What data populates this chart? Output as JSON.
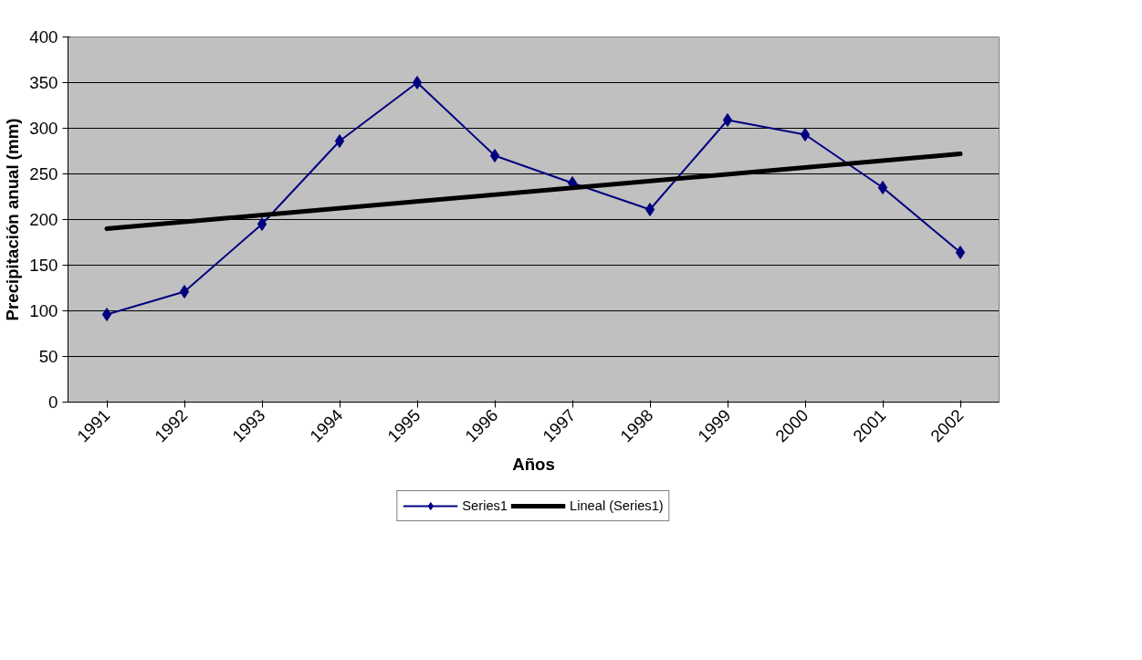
{
  "chart_data": {
    "type": "line",
    "xlabel": "Años",
    "ylabel": "Precipitación anual (mm)",
    "x": [
      1991,
      1992,
      1993,
      1994,
      1995,
      1996,
      1997,
      1998,
      1999,
      2000,
      2001,
      2002
    ],
    "series": [
      {
        "name": "Series1",
        "color": "#000080",
        "values": [
          96,
          121,
          195,
          286,
          350,
          270,
          240,
          211,
          309,
          293,
          235,
          164
        ],
        "marker": "diamond"
      },
      {
        "name": "Lineal (Series1)",
        "color": "#000000",
        "type": "line",
        "x": [
          1991,
          2002
        ],
        "values": [
          190,
          272
        ],
        "marker": "none"
      }
    ],
    "xlim": [
      1990.5,
      2002.5
    ],
    "xticks": [
      1991,
      1992,
      1993,
      1994,
      1995,
      1996,
      1997,
      1998,
      1999,
      2000,
      2001,
      2002
    ],
    "ylim": [
      0,
      400
    ],
    "yticks": [
      0,
      50,
      100,
      150,
      200,
      250,
      300,
      350,
      400
    ],
    "grid": "y",
    "legend": "bottom"
  }
}
